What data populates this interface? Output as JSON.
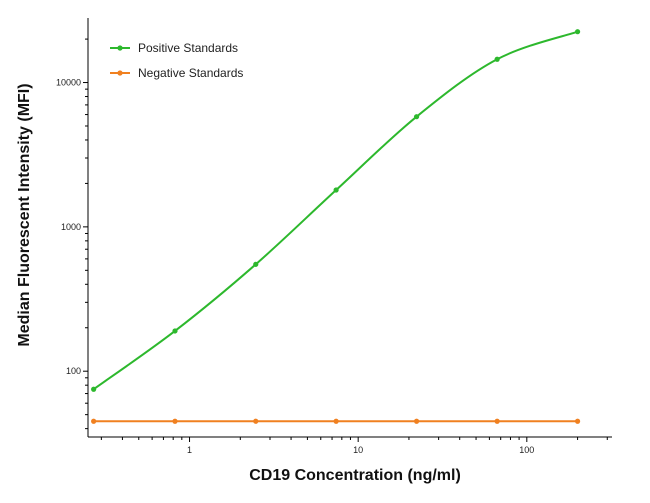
{
  "chart_data": {
    "type": "line",
    "xlabel": "CD19 Concentration (ng/ml)",
    "ylabel": "Median  Fluorescent Intensity  (MFI)",
    "xscale": "log",
    "yscale": "log",
    "xlim": [
      0.25,
      320
    ],
    "ylim": [
      35,
      28000
    ],
    "x_ticks": [
      1,
      10,
      100
    ],
    "x_tick_labels": [
      "1",
      "10",
      "100"
    ],
    "y_ticks": [
      100,
      1000,
      10000
    ],
    "y_tick_labels": [
      "100",
      "1000",
      "10000"
    ],
    "legend_position": "top-left",
    "grid": false,
    "series": [
      {
        "name": "Positive Standards",
        "color": "#2db82d",
        "x": [
          0.27,
          0.82,
          2.47,
          7.4,
          22.2,
          66.7,
          200
        ],
        "y": [
          75,
          190,
          550,
          1800,
          5800,
          14500,
          22500
        ]
      },
      {
        "name": "Negative Standards",
        "color": "#f08020",
        "x": [
          0.27,
          0.82,
          2.47,
          7.4,
          22.2,
          66.7,
          200
        ],
        "y": [
          45,
          45,
          45,
          45,
          45,
          45,
          45
        ]
      }
    ]
  }
}
